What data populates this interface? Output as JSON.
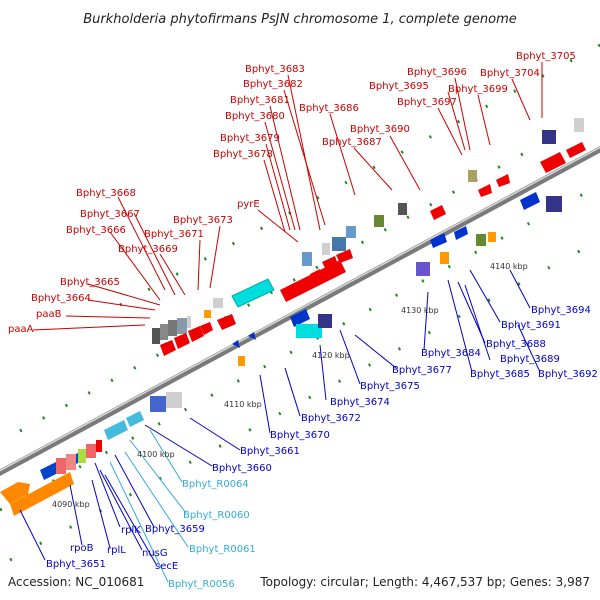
{
  "title": "Burkholderia phytofirmans PsJN chromosome 1, complete genome",
  "accession": "Accession: NC_010681",
  "summary": "Topology: circular; Length: 4,467,537 bp; Genes: 3,987",
  "colors": {
    "forward_label": "#cc0000",
    "reverse_label": "#0000cc",
    "rna_label": "#33aadd",
    "backbone": "#9a9a9a",
    "tick": "#228822"
  },
  "scale_marks": [
    {
      "kbp": 4090,
      "label": "4090 kbp"
    },
    {
      "kbp": 4100,
      "label": "4100 kbp"
    },
    {
      "kbp": 4110,
      "label": "4110 kbp"
    },
    {
      "kbp": 4120,
      "label": "4120 kbp"
    },
    {
      "kbp": 4130,
      "label": "4130 kbp"
    },
    {
      "kbp": 4140,
      "label": "4140 kbp"
    }
  ],
  "forward_labels": [
    "Bphyt_3705",
    "Bphyt_3704",
    "Bphyt_3696",
    "Bphyt_3695",
    "Bphyt_3699",
    "Bphyt_3697",
    "Bphyt_3683",
    "Bphyt_3682",
    "Bphyt_3681",
    "Bphyt_3686",
    "Bphyt_3680",
    "Bphyt_3690",
    "Bphyt_3679",
    "Bphyt_3687",
    "Bphyt_3678",
    "Bphyt_3668",
    "Bphyt_3667",
    "Bphyt_3673",
    "pyrE",
    "Bphyt_3666",
    "Bphyt_3671",
    "Bphyt_3669",
    "Bphyt_3665",
    "Bphyt_3664",
    "paaB",
    "paaA"
  ],
  "reverse_labels": [
    "Bphyt_3694",
    "Bphyt_3691",
    "Bphyt_3688",
    "Bphyt_3684",
    "Bphyt_3689",
    "Bphyt_3692",
    "Bphyt_3677",
    "Bphyt_3685",
    "Bphyt_3675",
    "Bphyt_3674",
    "Bphyt_3672",
    "Bphyt_3670",
    "Bphyt_3661",
    "Bphyt_3660",
    "Bphyt_3659",
    "rplK",
    "nusG",
    "secE",
    "rplL",
    "rpoB",
    "Bphyt_3651"
  ],
  "rna_labels": [
    "Bphyt_R0064",
    "Bphyt_R0060",
    "Bphyt_R0061",
    "Bphyt_R0056"
  ]
}
